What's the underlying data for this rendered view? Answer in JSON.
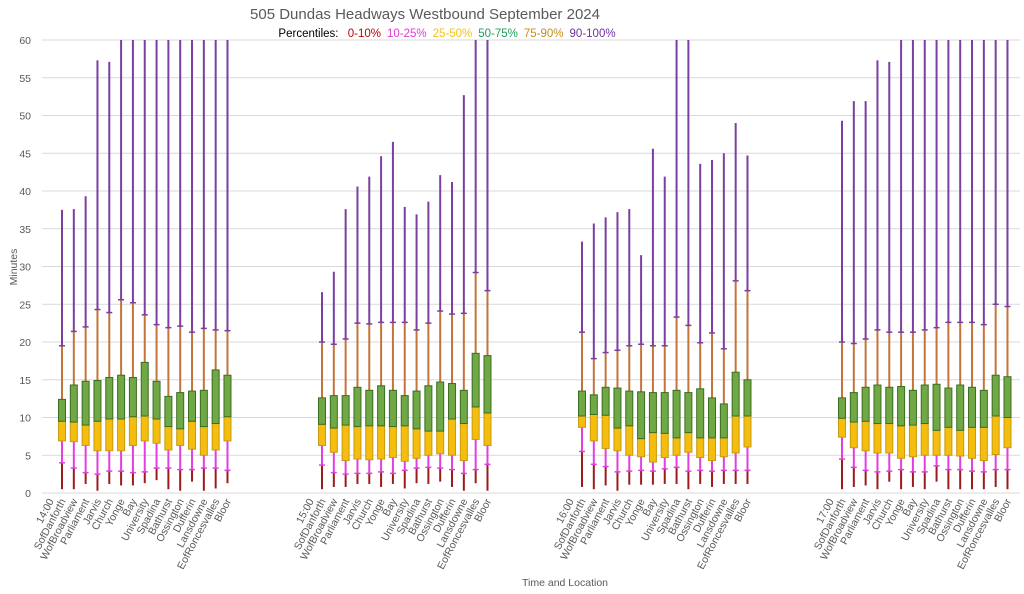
{
  "chart_data": {
    "type": "box",
    "title": "505 Dundas Headways Westbound September 2024",
    "legend": {
      "label": "Percentiles:",
      "entries": [
        {
          "name": "0-10%",
          "color": "#c00000"
        },
        {
          "name": "10-25%",
          "color": "#e03ad6"
        },
        {
          "name": "25-50%",
          "color": "#f2c314"
        },
        {
          "name": "50-75%",
          "color": "#1aa05a"
        },
        {
          "name": "75-90%",
          "color": "#c09018"
        },
        {
          "name": "90-100%",
          "color": "#7030a0"
        }
      ],
      "placement": "top-center"
    },
    "series_colors": {
      "p0_p10": "#9b1c1c",
      "p10_p25": "#e040e0",
      "p25_p50_fill": "#f5bd0e",
      "p25_p50_stroke": "#c89a10",
      "p50_p75_fill": "#70a845",
      "p50_p75_stroke": "#3b6d22",
      "p75_p90": "#c4743a",
      "p90_p100": "#7a3fa0"
    },
    "xlabel": "Time and Location",
    "ylabel": "Minutes",
    "ylim": [
      0,
      60
    ],
    "yticks": [
      0,
      5,
      10,
      15,
      20,
      25,
      30,
      35,
      40,
      45,
      50,
      55,
      60
    ],
    "grid": true,
    "stops": [
      "SofDanforth",
      "WofBroadview",
      "Parliament",
      "Jarvis",
      "Church",
      "Yonge",
      "Bay",
      "University",
      "Spadina",
      "Bathurst",
      "Ossington",
      "Dufferin",
      "Lansdowne",
      "EofRoncesvalles",
      "Bloor"
    ],
    "value_keys": [
      "min",
      "p10",
      "p25",
      "p50",
      "p75",
      "p90",
      "max"
    ],
    "groups": [
      {
        "time": "14:00",
        "values": [
          [
            0.5,
            4.0,
            6.9,
            9.5,
            12.4,
            19.5,
            37.5
          ],
          [
            0.5,
            3.3,
            6.8,
            9.4,
            14.3,
            21.4,
            37.6
          ],
          [
            1.2,
            2.7,
            6.3,
            9.0,
            14.8,
            22.0,
            39.3
          ],
          [
            0.3,
            2.5,
            5.6,
            9.5,
            14.9,
            24.3,
            57.3
          ],
          [
            1.2,
            2.9,
            5.6,
            9.8,
            15.3,
            23.9,
            57.1
          ],
          [
            1.0,
            2.9,
            5.6,
            9.8,
            15.6,
            25.6,
            60
          ],
          [
            1.0,
            2.7,
            6.3,
            10.1,
            15.3,
            25.2,
            60
          ],
          [
            1.3,
            2.8,
            6.9,
            10.2,
            17.3,
            23.6,
            60
          ],
          [
            1.7,
            3.3,
            6.6,
            9.8,
            14.8,
            22.3,
            60
          ],
          [
            0.5,
            3.3,
            5.7,
            8.8,
            12.8,
            21.9,
            60
          ],
          [
            0.3,
            3.1,
            6.3,
            8.5,
            13.3,
            22.1,
            60
          ],
          [
            1.5,
            3.1,
            5.8,
            9.5,
            13.5,
            21.3,
            60
          ],
          [
            0.3,
            3.3,
            5.0,
            8.8,
            13.6,
            21.8,
            60
          ],
          [
            0.6,
            3.3,
            5.7,
            9.2,
            16.3,
            21.6,
            60
          ],
          [
            1.3,
            3.0,
            6.9,
            10.1,
            15.6,
            21.5,
            60
          ]
        ]
      },
      {
        "time": "15:00",
        "values": [
          [
            0.5,
            3.7,
            6.3,
            9.1,
            12.6,
            20.0,
            26.6
          ],
          [
            0.8,
            2.7,
            5.4,
            8.6,
            12.9,
            19.7,
            29.3
          ],
          [
            0.8,
            2.5,
            4.3,
            9.0,
            12.9,
            20.4,
            37.6
          ],
          [
            1.2,
            2.6,
            4.5,
            8.8,
            14.0,
            22.5,
            40.6
          ],
          [
            1.2,
            2.6,
            4.4,
            8.9,
            13.6,
            22.4,
            41.9
          ],
          [
            0.8,
            2.8,
            4.5,
            8.9,
            14.2,
            22.6,
            44.6
          ],
          [
            1.2,
            2.6,
            4.7,
            8.8,
            13.6,
            22.6,
            46.5
          ],
          [
            0.6,
            3.0,
            4.2,
            8.9,
            12.9,
            22.6,
            37.9
          ],
          [
            1.3,
            3.3,
            4.6,
            8.5,
            13.5,
            21.6,
            36.9
          ],
          [
            1.2,
            3.4,
            5.0,
            8.2,
            14.2,
            22.5,
            38.6
          ],
          [
            1.5,
            3.3,
            5.2,
            8.2,
            14.7,
            24.1,
            42.1
          ],
          [
            0.8,
            3.1,
            5.0,
            9.8,
            14.5,
            23.7,
            41.2
          ],
          [
            0.3,
            2.6,
            4.3,
            9.2,
            13.6,
            23.8,
            52.7
          ],
          [
            1.3,
            3.1,
            7.1,
            11.4,
            18.5,
            29.2,
            60
          ],
          [
            0.3,
            3.8,
            6.3,
            10.6,
            18.2,
            26.8,
            60
          ]
        ]
      },
      {
        "time": "16:00",
        "values": [
          [
            0.8,
            5.5,
            8.7,
            10.2,
            13.5,
            21.3,
            33.3
          ],
          [
            0.5,
            3.8,
            6.9,
            10.4,
            13.0,
            17.8,
            35.7
          ],
          [
            1.0,
            3.5,
            5.9,
            10.3,
            14.0,
            18.6,
            36.5
          ],
          [
            0.3,
            2.8,
            5.6,
            8.6,
            13.9,
            18.9,
            37.2
          ],
          [
            1.1,
            2.9,
            5.0,
            8.9,
            13.5,
            19.5,
            37.6
          ],
          [
            1.1,
            3.0,
            4.8,
            7.2,
            13.4,
            19.7,
            31.5
          ],
          [
            1.1,
            2.9,
            4.1,
            8.0,
            13.3,
            19.5,
            45.6
          ],
          [
            1.2,
            3.2,
            4.7,
            7.9,
            13.3,
            19.5,
            41.9
          ],
          [
            1.2,
            3.4,
            5.0,
            7.3,
            13.6,
            23.3,
            60
          ],
          [
            0.5,
            2.9,
            5.4,
            8.0,
            13.3,
            22.2,
            60
          ],
          [
            1.2,
            3.0,
            4.7,
            7.3,
            13.8,
            19.9,
            43.6
          ],
          [
            0.8,
            2.9,
            4.3,
            7.3,
            12.6,
            21.2,
            44.1
          ],
          [
            1.2,
            3.0,
            4.8,
            7.3,
            11.8,
            19.1,
            45.0
          ],
          [
            1.2,
            3.0,
            5.3,
            10.2,
            16.0,
            28.1,
            49.0
          ],
          [
            1.2,
            3.0,
            6.1,
            10.2,
            15.0,
            26.8,
            44.7
          ]
        ]
      },
      {
        "time": "17:00",
        "values": [
          [
            0.5,
            4.5,
            7.4,
            9.9,
            12.6,
            20.0,
            49.3
          ],
          [
            0.8,
            3.4,
            6.0,
            9.4,
            13.3,
            19.8,
            51.9
          ],
          [
            1.0,
            3.0,
            5.6,
            9.5,
            14.0,
            20.4,
            51.9
          ],
          [
            0.5,
            2.8,
            5.3,
            9.2,
            14.3,
            21.6,
            57.3
          ],
          [
            1.5,
            2.9,
            5.3,
            9.2,
            14.0,
            21.3,
            57.1
          ],
          [
            0.5,
            3.1,
            4.6,
            8.9,
            14.1,
            21.3,
            60
          ],
          [
            0.8,
            2.8,
            4.8,
            9.0,
            13.6,
            21.3,
            60
          ],
          [
            0.5,
            2.8,
            5.0,
            9.2,
            14.3,
            21.6,
            60
          ],
          [
            1.5,
            3.6,
            5.0,
            8.3,
            14.4,
            21.9,
            60
          ],
          [
            0.5,
            3.1,
            5.0,
            8.7,
            13.9,
            22.6,
            60
          ],
          [
            0.5,
            3.1,
            4.9,
            8.3,
            14.3,
            22.6,
            60
          ],
          [
            0.5,
            2.9,
            4.6,
            8.7,
            14.0,
            22.6,
            60
          ],
          [
            0.5,
            2.8,
            4.3,
            8.7,
            13.6,
            22.3,
            60
          ],
          [
            0.8,
            3.1,
            5.1,
            10.2,
            15.6,
            25.0,
            60
          ],
          [
            0.5,
            3.1,
            6.0,
            10.0,
            15.4,
            24.7,
            60
          ]
        ]
      }
    ]
  }
}
